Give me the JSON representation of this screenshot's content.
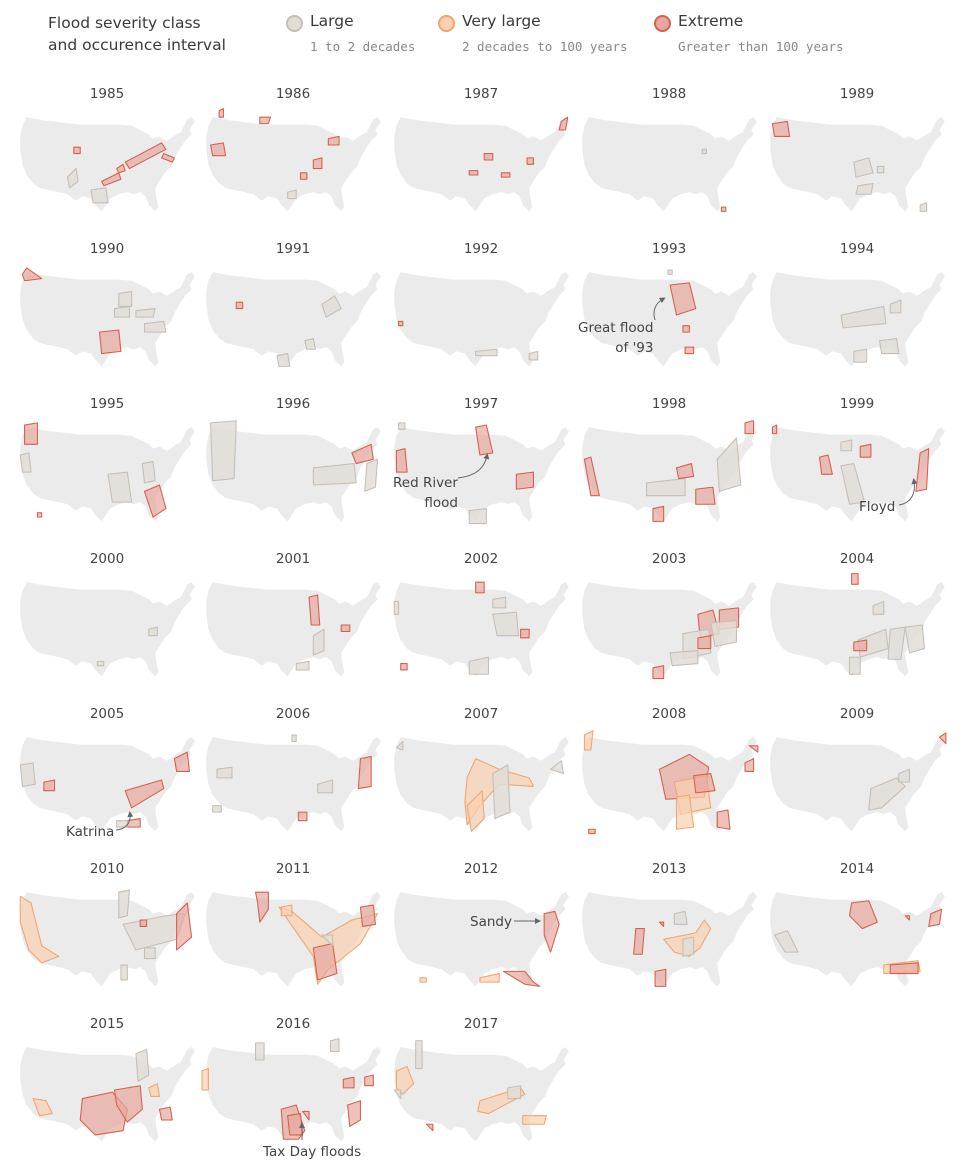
{
  "legend": {
    "title_line1": "Flood severity class",
    "title_line2": "and occurence interval",
    "classes": [
      {
        "key": "large",
        "label": "Large",
        "interval": "1 to 2 decades",
        "fill": "#e2ddd7",
        "stroke": "#c6beb6"
      },
      {
        "key": "very_large",
        "label": "Very large",
        "interval": "2 decades to 100 years",
        "fill": "#f9d0b0",
        "stroke": "#f0a571"
      },
      {
        "key": "extreme",
        "label": "Extreme",
        "interval": "Greater than 100 years",
        "fill": "#e8a69e",
        "stroke": "#d3614e"
      }
    ]
  },
  "colors": {
    "land": "#ebebeb",
    "arrow": "#666666"
  },
  "maps": [
    {
      "year": "1985"
    },
    {
      "year": "1986"
    },
    {
      "year": "1987"
    },
    {
      "year": "1988"
    },
    {
      "year": "1989"
    },
    {
      "year": "1990"
    },
    {
      "year": "1991"
    },
    {
      "year": "1992"
    },
    {
      "year": "1993"
    },
    {
      "year": "1994"
    },
    {
      "year": "1995"
    },
    {
      "year": "1996"
    },
    {
      "year": "1997"
    },
    {
      "year": "1998"
    },
    {
      "year": "1999"
    },
    {
      "year": "2000"
    },
    {
      "year": "2001"
    },
    {
      "year": "2002"
    },
    {
      "year": "2003"
    },
    {
      "year": "2004"
    },
    {
      "year": "2005"
    },
    {
      "year": "2006"
    },
    {
      "year": "2007"
    },
    {
      "year": "2008"
    },
    {
      "year": "2009"
    },
    {
      "year": "2010"
    },
    {
      "year": "2011"
    },
    {
      "year": "2012"
    },
    {
      "year": "2013"
    },
    {
      "year": "2014"
    },
    {
      "year": "2015"
    },
    {
      "year": "2016"
    },
    {
      "year": "2017"
    }
  ],
  "annotations": {
    "great_flood_line1": "Great flood",
    "great_flood_line2": "of '93",
    "red_river_line1": "Red River",
    "red_river_line2": "flood",
    "floyd": "Floyd",
    "katrina": "Katrina",
    "sandy": "Sandy",
    "tax_day": "Tax Day floods"
  }
}
